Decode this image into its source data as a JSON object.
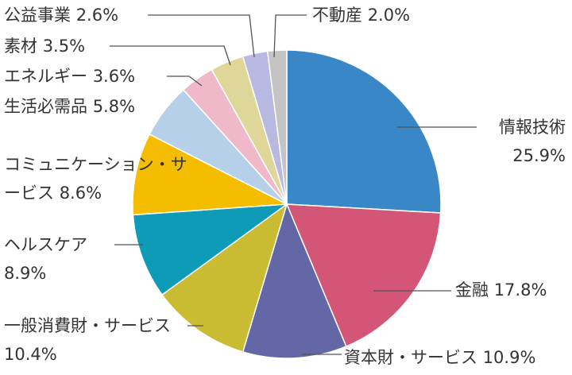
{
  "chart_data": {
    "type": "pie",
    "categories": [
      "情報技術",
      "金融",
      "資本財・サービス",
      "一般消費財・サービス",
      "ヘルスケア",
      "コミュニケーション・サービス",
      "生活必需品",
      "エネルギー",
      "素材",
      "公益事業",
      "不動産"
    ],
    "values": [
      25.9,
      17.8,
      10.9,
      10.4,
      8.9,
      8.6,
      5.8,
      3.6,
      3.5,
      2.6,
      2.0
    ],
    "value_labels": [
      "25.9%",
      "17.8%",
      "10.9%",
      "10.4%",
      "8.9%",
      "8.6%",
      "5.8%",
      "3.6%",
      "3.5%",
      "2.6%",
      "2.0%"
    ],
    "colors": [
      "#3a87c8",
      "#d45676",
      "#6367a6",
      "#c9bc33",
      "#0e9bb8",
      "#f5bd00",
      "#b5d0e8",
      "#efb9c9",
      "#dfd79a",
      "#b8b8e0",
      "#c4c4c4"
    ]
  }
}
